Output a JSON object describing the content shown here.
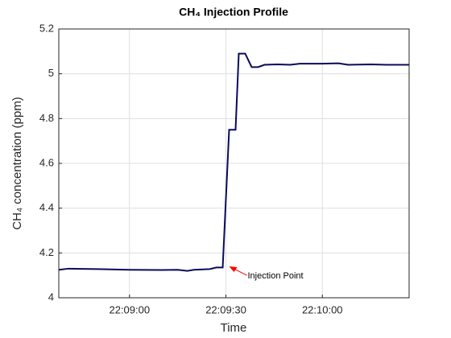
{
  "chart_data": {
    "type": "line",
    "title": "CH₄ Injection Profile",
    "x_label": "Time",
    "y_label": "CH₄ concentration (ppm)",
    "x": [
      "22:08:38",
      "22:08:41",
      "22:08:50",
      "22:09:00",
      "22:09:10",
      "22:09:15",
      "22:09:18",
      "22:09:20",
      "22:09:25",
      "22:09:27",
      "22:09:29",
      "22:09:31",
      "22:09:33",
      "22:09:34",
      "22:09:36",
      "22:09:38",
      "22:09:40",
      "22:09:42",
      "22:09:46",
      "22:09:50",
      "22:09:53",
      "22:10:00",
      "22:10:05",
      "22:10:08",
      "22:10:15",
      "22:10:20",
      "22:10:27"
    ],
    "series": [
      {
        "color": "#0a0a5c",
        "values": [
          4.125,
          4.13,
          4.128,
          4.125,
          4.124,
          4.125,
          4.12,
          4.125,
          4.128,
          4.135,
          4.135,
          4.75,
          4.75,
          5.09,
          5.09,
          5.03,
          5.03,
          5.04,
          5.042,
          5.04,
          5.045,
          5.045,
          5.047,
          5.04,
          5.042,
          5.04,
          5.04
        ]
      }
    ],
    "xlim": [
      "22:08:38",
      "22:10:27"
    ],
    "xticks": [
      "22:09:00",
      "22:09:30",
      "22:10:00"
    ],
    "ylim": [
      4,
      5.2
    ],
    "yticks": [
      4,
      4.2,
      4.4,
      4.6,
      4.8,
      5,
      5.2
    ],
    "grid": true,
    "annotation": {
      "text": "Injection Point",
      "x": "22:09:31",
      "y": 4.14,
      "color": "#ff0000"
    }
  }
}
